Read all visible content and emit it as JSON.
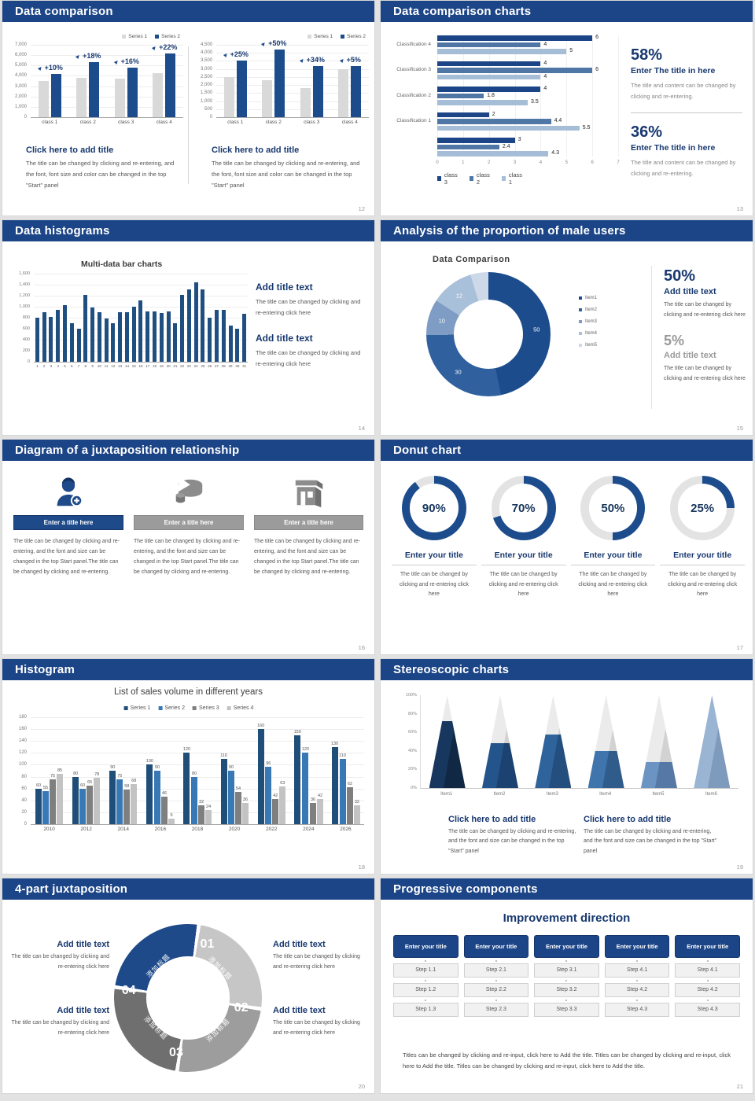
{
  "theme": {
    "header_bg": "#1c4587",
    "accent_blue": "#1e4a8a",
    "title_color": "#17386f",
    "body_color": "#555555",
    "track_gray": "#e3e3e3"
  },
  "slides": {
    "s12": {
      "title": "Data comparison",
      "page": "12",
      "left": {
        "heading": "Click here to add title",
        "body": "The title can be changed by clicking and re-entering, and the font, font size and color can be changed in the top \"Start\" panel"
      },
      "right": {
        "heading": "Click here to add title",
        "body": "The title can be changed by clicking and re-entering, and the font, font size and color can be changed in the top \"Start\" panel"
      }
    },
    "s13": {
      "title": "Data comparison charts",
      "page": "13",
      "stats": [
        {
          "value": "58%",
          "heading": "Enter The title in here",
          "body": "The title and content can be changed by clicking and re-entering."
        },
        {
          "value": "36%",
          "heading": "Enter The title in here",
          "body": "The title and content can be changed by clicking and re-entering."
        }
      ]
    },
    "s14": {
      "title": "Data histograms",
      "page": "14",
      "blocks": [
        {
          "heading": "Add title text",
          "body": "The title can be changed by clicking and re-entering click here"
        },
        {
          "heading": "Add title text",
          "body": "The title can be changed by clicking and re-entering click here"
        }
      ]
    },
    "s15": {
      "title": "Analysis of the proportion of male users",
      "page": "15",
      "stats": [
        {
          "value": "50%",
          "heading": "Add title text",
          "body": "The title can be changed by clicking and re-entering click here"
        },
        {
          "value": "5%",
          "heading": "Add title text",
          "body": "The title can be changed by clicking and re-entering click here"
        }
      ]
    },
    "s16": {
      "title": "Diagram of a juxtaposition relationship",
      "page": "16",
      "cards": [
        {
          "icon": "nurse-icon",
          "bar": "Enter a title here",
          "body": "The title can be changed by clicking and re-entering, and the font and size can be changed in the top Start panel.The title can be changed by clicking and re-entering."
        },
        {
          "icon": "pie-cake-icon",
          "bar": "Enter a title here",
          "body": "The title can be changed by clicking and re-entering, and the font and size can be changed in the top Start panel.The title can be changed by clicking and re-entering."
        },
        {
          "icon": "building-icon",
          "bar": "Enter a title here",
          "body": "The title can be changed by clicking and re-entering, and the font and size can be changed in the top Start panel.The title can be changed by clicking and re-entering."
        }
      ]
    },
    "s17": {
      "title": "Donut chart",
      "page": "17",
      "card_title": "Enter your title",
      "card_body": "The title can be changed by clicking and re-entering click here"
    },
    "s18": {
      "title": "Histogram",
      "page": "18"
    },
    "s19": {
      "title": "Stereoscopic charts",
      "page": "19",
      "blocks": [
        {
          "heading": "Click here to add title",
          "body": "The title can be changed by clicking and re-entering, and the font and size can be changed in the top \"Start\" panel"
        },
        {
          "heading": "Click here to add title",
          "body": "The title can be changed by clicking and re-entering, and the font and size can be changed in the top \"Start\" panel"
        }
      ]
    },
    "s20": {
      "title": "4-part juxtaposition",
      "page": "20",
      "ring": [
        {
          "num": "01",
          "label": "添加标题",
          "color": "#c6c6c6"
        },
        {
          "num": "02",
          "label": "添加标题",
          "color": "#9d9d9d"
        },
        {
          "num": "03",
          "label": "添加标题",
          "color": "#6f6f6f"
        },
        {
          "num": "04",
          "label": "添加标题",
          "color": "#1e4a8a"
        }
      ],
      "blocks": [
        {
          "heading": "Add title text",
          "body": "The title can be changed by clicking and re-entering click here"
        },
        {
          "heading": "Add title text",
          "body": "The title can be changed by clicking and re-entering click here"
        },
        {
          "heading": "Add title text",
          "body": "The title can be changed by clicking and re-entering click here"
        },
        {
          "heading": "Add title text",
          "body": "The title can be changed by clicking and re-entering click here"
        }
      ]
    },
    "s21": {
      "title": "Progressive components",
      "page": "21",
      "heading": "Improvement direction",
      "columns": [
        {
          "header": "Enter your title",
          "steps": [
            "Step 1.1",
            "Step 1.2",
            "Step 1.3"
          ]
        },
        {
          "header": "Enter your title",
          "steps": [
            "Step 2.1",
            "Step 2.2",
            "Step 2.3"
          ]
        },
        {
          "header": "Enter your title",
          "steps": [
            "Step 3.1",
            "Step 3.2",
            "Step 3.3"
          ]
        },
        {
          "header": "Enter your title",
          "steps": [
            "Step 4.1",
            "Step 4.2",
            "Step 4.3"
          ]
        },
        {
          "header": "Enter your title",
          "steps": [
            "Step 4.1",
            "Step 4.2",
            "Step 4.3"
          ]
        }
      ],
      "footer": "Titles can be changed by clicking and re-input, click here to Add the title. Titles can be changed by clicking and re-input, click here to Add the title. Titles can be changed by clicking and re-input, click here to Add the title."
    }
  },
  "chart_data": [
    {
      "id": "s12a",
      "type": "bar",
      "categories": [
        "class 1",
        "class 2",
        "class 3",
        "class 4"
      ],
      "series": [
        {
          "name": "Series 1",
          "color": "#d9d9d9",
          "values": [
            3500,
            3800,
            3700,
            4300
          ]
        },
        {
          "name": "Series 2",
          "color": "#1c4c8c",
          "values": [
            4200,
            5300,
            4800,
            6200
          ]
        }
      ],
      "annotations": [
        "+10%",
        "+18%",
        "+16%",
        "+22%"
      ],
      "ylim": [
        0,
        7000
      ],
      "yticks": [
        "7,000",
        "6,000",
        "5,000",
        "4,000",
        "3,000",
        "2,000",
        "1,000",
        "0"
      ]
    },
    {
      "id": "s12b",
      "type": "bar",
      "categories": [
        "class 1",
        "class 2",
        "class 3",
        "class 4"
      ],
      "series": [
        {
          "name": "Series 1",
          "color": "#d9d9d9",
          "values": [
            2500,
            2300,
            1800,
            3000
          ]
        },
        {
          "name": "Series 2",
          "color": "#1c4c8c",
          "values": [
            3500,
            4200,
            3200,
            3200
          ]
        }
      ],
      "annotations": [
        "+25%",
        "+50%",
        "+34%",
        "+5%"
      ],
      "ylim": [
        0,
        4500
      ],
      "yticks": [
        "4,500",
        "4,000",
        "3,500",
        "3,000",
        "2,500",
        "2,000",
        "1,500",
        "1,000",
        "500",
        "0"
      ]
    },
    {
      "id": "s13",
      "type": "hbar",
      "categories": [
        "Classification 4",
        "Classification 3",
        "Classification 2",
        "Classification 1",
        ""
      ],
      "series": [
        {
          "name": "class 3",
          "color": "#1c4587",
          "values": [
            6,
            4,
            4,
            2,
            3
          ]
        },
        {
          "name": "class 2",
          "color": "#4f76a4",
          "values": [
            4,
            6,
            1.8,
            4.4,
            2.4
          ]
        },
        {
          "name": "class 1",
          "color": "#a6bdd7",
          "values": [
            5,
            4,
            3.5,
            5.5,
            4.3
          ]
        }
      ],
      "xlim": [
        0,
        7
      ]
    },
    {
      "id": "s14",
      "type": "bar",
      "title": "Multi-data bar charts",
      "categories": [
        "1",
        "2",
        "3",
        "4",
        "5",
        "6",
        "7",
        "8",
        "9",
        "10",
        "11",
        "12",
        "13",
        "14",
        "15",
        "16",
        "17",
        "18",
        "19",
        "20",
        "21",
        "22",
        "23",
        "24",
        "25",
        "26",
        "27",
        "28",
        "29",
        "30",
        "31"
      ],
      "series": [
        {
          "name": "",
          "color": "#1f4e80",
          "values": [
            800,
            900,
            810,
            950,
            1030,
            700,
            600,
            1220,
            980,
            900,
            780,
            700,
            900,
            900,
            1000,
            1110,
            910,
            910,
            880,
            910,
            700,
            1220,
            1310,
            1450,
            1310,
            800,
            940,
            950,
            660,
            600,
            870
          ]
        }
      ],
      "ylim": [
        0,
        1600
      ],
      "yticks": [
        "1,600",
        "1,400",
        "1,200",
        "1,000",
        "800",
        "600",
        "400",
        "200",
        "0"
      ]
    },
    {
      "id": "s15",
      "type": "donut",
      "title": "Data Comparison",
      "values": [
        50,
        30,
        10,
        12,
        5
      ],
      "labels": [
        "50",
        "30",
        "10",
        "12",
        ""
      ],
      "colors": [
        "#1c4c8c",
        "#30619e",
        "#7e9cc4",
        "#a9c0da",
        "#cdd9e8"
      ],
      "legend": [
        "Item1",
        "Item2",
        "Item3",
        "Item4",
        "Item5"
      ]
    },
    {
      "id": "s17",
      "type": "donut-rings",
      "values": [
        90,
        70,
        50,
        25
      ],
      "labels": [
        "90%",
        "70%",
        "50%",
        "25%"
      ],
      "color": "#1c4c8c",
      "track": "#e3e3e3"
    },
    {
      "id": "s18",
      "type": "bar",
      "title": "List of sales volume in different years",
      "categories": [
        "2010",
        "2012",
        "2014",
        "2016",
        "2018",
        "2020",
        "2022",
        "2024",
        "2026"
      ],
      "series": [
        {
          "name": "Series 1",
          "color": "#1f4e79",
          "values": [
            60,
            80,
            90,
            100,
            120,
            110,
            160,
            150,
            130
          ]
        },
        {
          "name": "Series 2",
          "color": "#3878b4",
          "values": [
            55,
            60,
            75,
            90,
            80,
            90,
            96,
            120,
            110
          ]
        },
        {
          "name": "Series 3",
          "color": "#7f7f7f",
          "values": [
            75,
            65,
            58,
            46,
            32,
            54,
            42,
            36,
            62
          ]
        },
        {
          "name": "Series 4",
          "color": "#c3c3c3",
          "values": [
            85,
            78,
            68,
            9,
            24,
            36,
            63,
            42,
            32
          ]
        }
      ],
      "ylim": [
        0,
        180
      ],
      "yticks": [
        "180",
        "160",
        "140",
        "120",
        "100",
        "80",
        "60",
        "40",
        "20",
        "0"
      ]
    },
    {
      "id": "s19",
      "type": "pyramid",
      "categories": [
        "Item1",
        "Item2",
        "Item3",
        "Item4",
        "Item5",
        "Item6"
      ],
      "values": [
        72,
        48,
        58,
        40,
        28,
        100
      ],
      "colors": [
        "#17375e",
        "#24548c",
        "#2e639c",
        "#3f74ac",
        "#6b94c3",
        "#9ab4d4"
      ],
      "shades": [
        "#102844",
        "#1b4271",
        "#234e7e",
        "#305c8c",
        "#5579a4",
        "#7e9abc"
      ],
      "ylim": [
        0,
        100
      ],
      "yticks": [
        "100%",
        "80%",
        "60%",
        "40%",
        "20%",
        "0%"
      ]
    }
  ]
}
